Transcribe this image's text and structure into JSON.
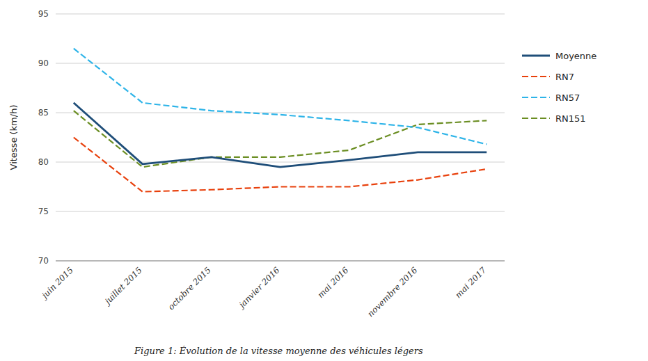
{
  "chart_data": {
    "type": "line",
    "categories": [
      "juin 2015",
      "juillet 2015",
      "octobre 2015",
      "janvier 2016",
      "mai 2016",
      "novembre 2016",
      "mai 2017"
    ],
    "series": [
      {
        "name": "Moyenne",
        "color": "#1F4E79",
        "line_style": "solid",
        "values": [
          86.0,
          79.8,
          80.5,
          79.5,
          80.2,
          81.0,
          81.0
        ]
      },
      {
        "name": "RN7",
        "color": "#E8400C",
        "line_style": "dashed",
        "values": [
          82.5,
          77.0,
          77.2,
          77.5,
          77.5,
          78.2,
          79.3
        ]
      },
      {
        "name": "RN57",
        "color": "#2EB4E8",
        "line_style": "dashed",
        "values": [
          91.5,
          86.0,
          85.2,
          84.8,
          84.2,
          83.5,
          81.8
        ]
      },
      {
        "name": "RN151",
        "color": "#6B8E23",
        "line_style": "dashed",
        "values": [
          85.2,
          79.5,
          80.5,
          80.5,
          81.2,
          83.8,
          84.2
        ]
      }
    ],
    "y_label": "Vitesse (km/h)",
    "caption": "Figure 1: Évolution de la vitesse moyenne des véhicules légers",
    "ylim": [
      70,
      95
    ],
    "yticks": [
      70,
      75,
      80,
      85,
      90,
      95
    ],
    "grid": true,
    "legend": "right"
  }
}
